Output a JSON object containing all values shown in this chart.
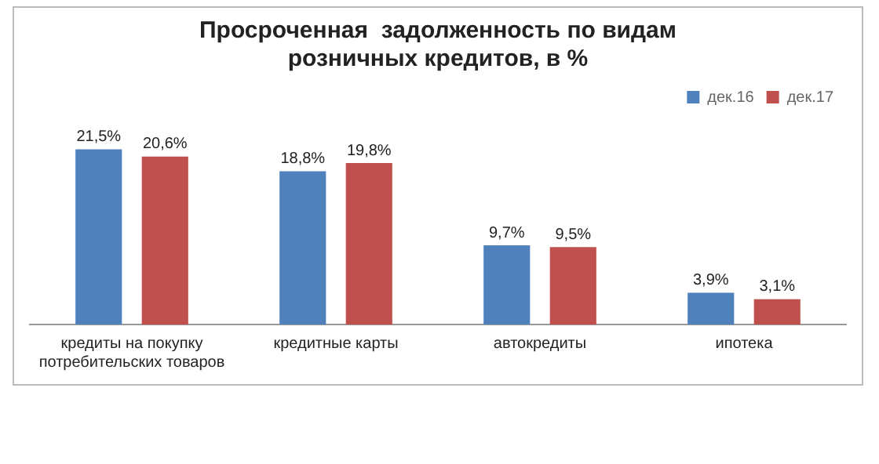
{
  "chart_data": {
    "type": "bar",
    "title": "Просроченная  задолженность по видам розничных кредитов, в %",
    "categories": [
      "кредиты на покупку потребительских товаров",
      "кредитные карты",
      "автокредиты",
      "ипотека"
    ],
    "series": [
      {
        "name": "дек.16",
        "color": "#4f81bd",
        "values": [
          21.5,
          18.8,
          9.7,
          3.9
        ],
        "value_labels": [
          "21,5%",
          "18,8%",
          "9,7%",
          "3,9%"
        ]
      },
      {
        "name": "дек.17",
        "color": "#c0504d",
        "values": [
          20.6,
          19.8,
          9.5,
          3.1
        ],
        "value_labels": [
          "20,6%",
          "19,8%",
          "9,5%",
          "3,1%"
        ]
      }
    ],
    "legend": "top right",
    "grid": false
  }
}
